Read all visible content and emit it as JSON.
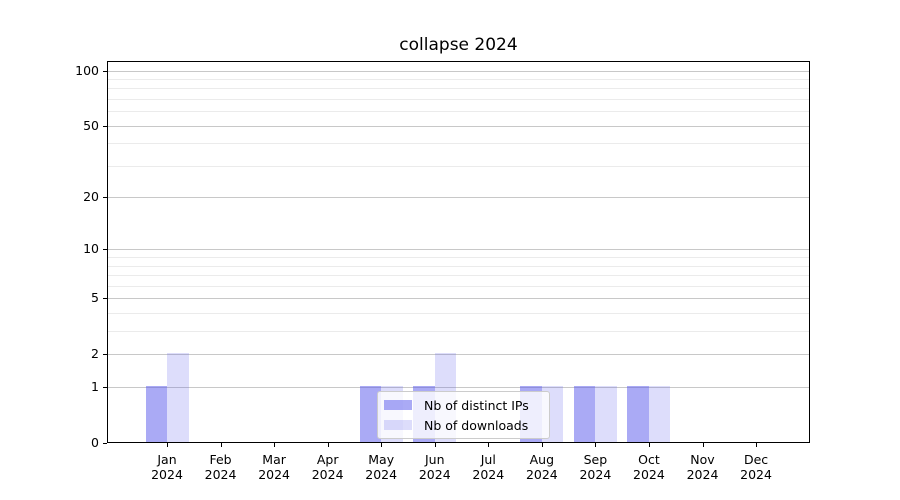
{
  "chart_data": {
    "type": "bar",
    "title": "collapse 2024",
    "categories": [
      "Jan 2024",
      "Feb 2024",
      "Mar 2024",
      "Apr 2024",
      "May 2024",
      "Jun 2024",
      "Jul 2024",
      "Aug 2024",
      "Sep 2024",
      "Oct 2024",
      "Nov 2024",
      "Dec 2024"
    ],
    "series": [
      {
        "name": "Nb of distinct IPs",
        "values": [
          1,
          0,
          0,
          0,
          1,
          1,
          0,
          1,
          1,
          1,
          0,
          0
        ],
        "color": "rgba(85,85,235,0.5)"
      },
      {
        "name": "Nb of downloads",
        "values": [
          2,
          0,
          0,
          0,
          1,
          2,
          0,
          1,
          1,
          1,
          0,
          0
        ],
        "color": "rgba(85,85,235,0.2)"
      }
    ],
    "xlabel": "",
    "ylabel": "",
    "yscale": "log1p",
    "ylim": [
      0,
      113
    ],
    "y_major_ticks": [
      0,
      1,
      2,
      5,
      10,
      20,
      50,
      100
    ],
    "y_minor_ticks": [
      3,
      4,
      6,
      7,
      8,
      9,
      30,
      40,
      60,
      70,
      80,
      90
    ],
    "grid": "horizontal",
    "legend_position": "inside lower center",
    "colors": {
      "grid_major": "#c8c8c8",
      "grid_minor": "#ebebeb",
      "axis": "#000000",
      "background": "#ffffff"
    }
  }
}
